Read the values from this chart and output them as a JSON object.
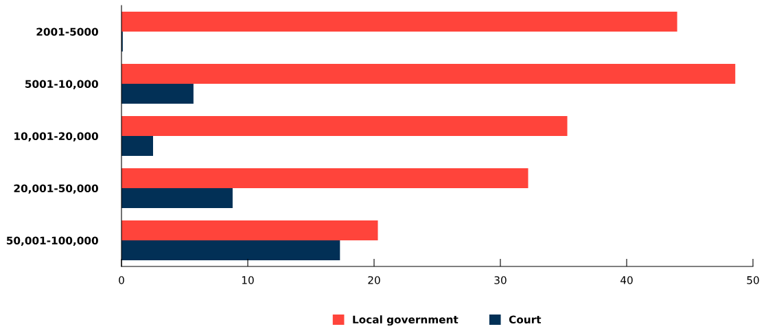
{
  "chart_data": {
    "type": "bar",
    "orientation": "horizontal",
    "categories": [
      "2001-5000",
      "5001-10,000",
      "10,001-20,000",
      "20,001-50,000",
      "50,001-100,000"
    ],
    "series": [
      {
        "name": "Local government",
        "color": "#ff443b",
        "values": [
          44.0,
          48.6,
          35.3,
          32.2,
          20.3
        ]
      },
      {
        "name": "Court",
        "color": "#023056",
        "values": [
          0.1,
          5.7,
          2.5,
          8.8,
          17.3
        ]
      }
    ],
    "xlim": [
      0,
      50
    ],
    "xticks": [
      0,
      10,
      20,
      30,
      40,
      50
    ],
    "grid": false,
    "legend": "bottom"
  }
}
